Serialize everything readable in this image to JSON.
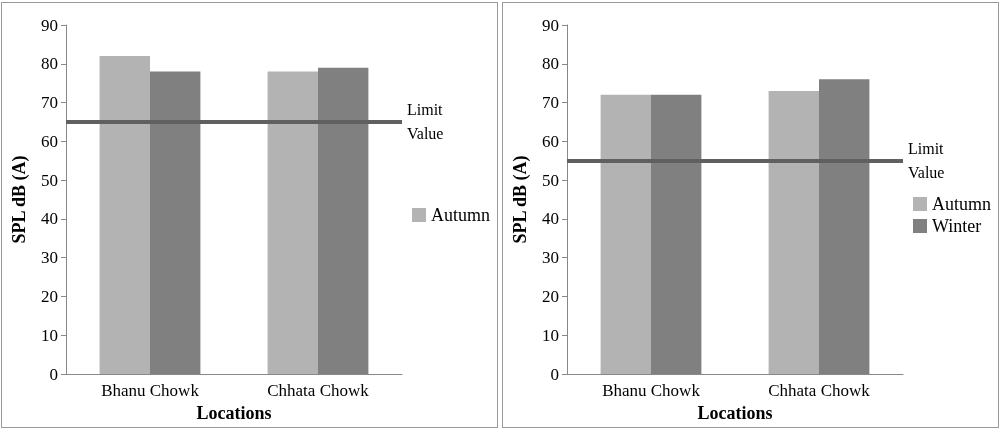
{
  "chart_data": [
    {
      "type": "bar",
      "xlabel": "Locations",
      "ylabel": "SPL dB (A)",
      "categories": [
        "Bhanu Chowk",
        "Chhata Chowk"
      ],
      "series": [
        {
          "name": "Autumn",
          "color": "#b3b3b3",
          "values": [
            82,
            78
          ]
        },
        {
          "color": "#808080",
          "values": [
            78,
            79
          ]
        }
      ],
      "ylim": [
        0,
        90
      ],
      "yticks": [
        0,
        10,
        20,
        30,
        40,
        50,
        60,
        70,
        80,
        90
      ],
      "grid": false,
      "legend": "right",
      "ref_lines": [
        {
          "axis": "y",
          "value": 65,
          "label": "Limit Value",
          "color": "#606060"
        }
      ]
    },
    {
      "type": "bar",
      "xlabel": "Locations",
      "ylabel": "SPL dB (A)",
      "categories": [
        "Bhanu Chowk",
        "Chhata Chowk"
      ],
      "series": [
        {
          "name": "Autumn",
          "color": "#b3b3b3",
          "values": [
            72,
            73
          ]
        },
        {
          "name": "Winter",
          "color": "#808080",
          "values": [
            72,
            76
          ]
        }
      ],
      "ylim": [
        0,
        90
      ],
      "yticks": [
        0,
        10,
        20,
        30,
        40,
        50,
        60,
        70,
        80,
        90
      ],
      "grid": false,
      "legend": "right",
      "ref_lines": [
        {
          "axis": "y",
          "value": 55,
          "label": "Limit Value",
          "color": "#606060"
        }
      ]
    }
  ]
}
